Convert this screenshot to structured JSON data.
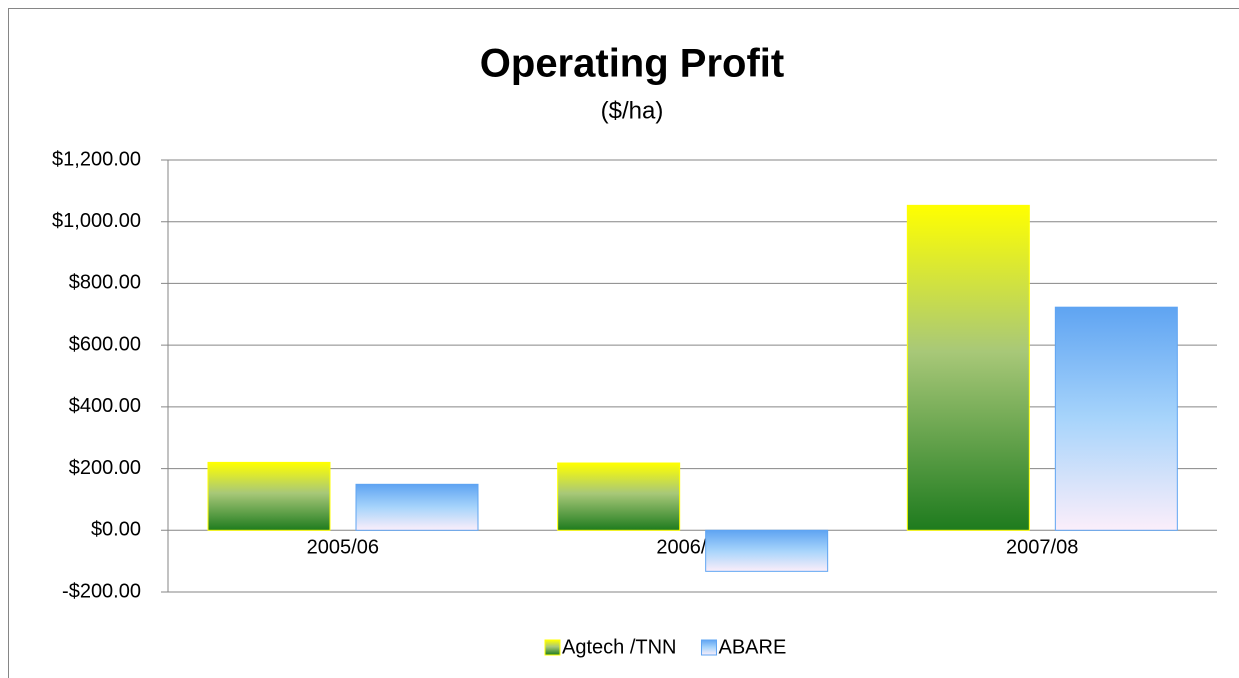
{
  "chart_data": {
    "type": "bar",
    "title": "Operating Profit",
    "subtitle": "($/ha)",
    "categories": [
      "2005/06",
      "2006/07",
      "2007/08"
    ],
    "series": [
      {
        "name": "Agtech /TNN",
        "color": "#ffff00",
        "values": [
          220,
          218,
          1053
        ]
      },
      {
        "name": "ABARE",
        "color": "#5fa4f2",
        "values": [
          149,
          -133,
          723
        ]
      }
    ],
    "ylim": [
      -200,
      1200
    ],
    "yticks": [
      {
        "value": -200,
        "label": "-$200.00"
      },
      {
        "value": 0,
        "label": "$0.00"
      },
      {
        "value": 200,
        "label": "$200.00"
      },
      {
        "value": 400,
        "label": "$400.00"
      },
      {
        "value": 600,
        "label": "$600.00"
      },
      {
        "value": 800,
        "label": "$800.00"
      },
      {
        "value": 1000,
        "label": "$1,000.00"
      },
      {
        "value": 1200,
        "label": "$1,200.00"
      }
    ],
    "grid": true,
    "legend": "bottom"
  }
}
